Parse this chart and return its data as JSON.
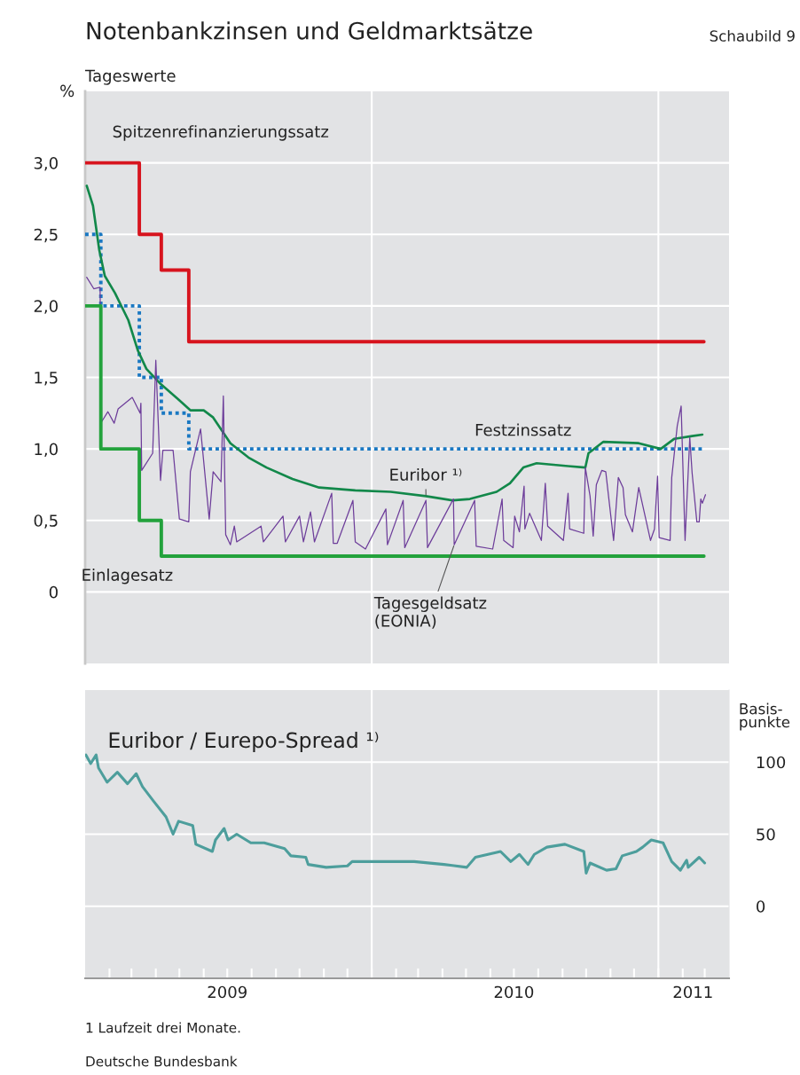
{
  "chart_data": [
    {
      "type": "line",
      "title": "Notenbankzinsen und Geldmarktsätze",
      "subtitle": "Tageswerte",
      "ylabel": "%",
      "annotations": [
        "Schaubild 9"
      ],
      "xlim": [
        "2009-01-01",
        "2011-04-01"
      ],
      "ylim": [
        -0.5,
        3.5
      ],
      "yticks": [
        0,
        {
          "value": 0.5,
          "label": "0,5"
        },
        {
          "value": 1.0,
          "label": "1,0"
        },
        {
          "value": 1.5,
          "label": "1,5"
        },
        {
          "value": 2.0,
          "label": "2,0"
        },
        {
          "value": 2.5,
          "label": "2,5"
        },
        {
          "value": 3.0,
          "label": "3,0"
        }
      ],
      "grid": "y",
      "tick_labels": "y",
      "ref_lines": [
        {
          "axis": "x",
          "value": "2010-01-01",
          "color": "#ffffff"
        },
        {
          "axis": "x",
          "value": "2011-01-01",
          "color": "#ffffff"
        }
      ],
      "series": [
        {
          "name": "Spitzenrefinanzierungssatz",
          "type": "step",
          "color": "#d7141e",
          "x": [
            "2009-01-01",
            "2009-03-11",
            "2009-04-08",
            "2009-05-13",
            "2011-02-28"
          ],
          "values": [
            3.0,
            2.5,
            2.25,
            1.75,
            1.75
          ]
        },
        {
          "name": "Festzinssatz",
          "type": "step",
          "line_style": "dotted",
          "color": "#1a78c2",
          "x": [
            "2009-01-01",
            "2009-01-21",
            "2009-03-11",
            "2009-04-08",
            "2009-05-13",
            "2011-02-28"
          ],
          "values": [
            2.5,
            2.0,
            1.5,
            1.25,
            1.0,
            1.0
          ]
        },
        {
          "name": "Euribor ¹⁾",
          "type": "line",
          "color": "#12884a",
          "x": [
            "2009-01-03",
            "2009-01-11",
            "2009-01-19",
            "2009-01-26",
            "2009-02-08",
            "2009-02-25",
            "2009-03-09",
            "2009-03-20",
            "2009-04-06",
            "2009-04-29",
            "2009-05-15",
            "2009-06-01",
            "2009-06-13",
            "2009-06-24",
            "2009-07-05",
            "2009-07-28",
            "2009-08-20",
            "2009-09-22",
            "2009-10-26",
            "2009-12-11",
            "2010-01-25",
            "2010-03-11",
            "2010-04-14",
            "2010-05-06",
            "2010-06-09",
            "2010-06-26",
            "2010-07-13",
            "2010-07-30",
            "2010-09-08",
            "2010-09-30",
            "2010-10-04",
            "2010-10-23",
            "2010-12-07",
            "2011-01-04",
            "2011-01-21",
            "2011-02-13",
            "2011-02-26"
          ],
          "values": [
            2.84,
            2.7,
            2.39,
            2.21,
            2.09,
            1.9,
            1.69,
            1.56,
            1.46,
            1.35,
            1.27,
            1.27,
            1.22,
            1.13,
            1.04,
            0.94,
            0.87,
            0.79,
            0.73,
            0.71,
            0.7,
            0.67,
            0.64,
            0.65,
            0.7,
            0.76,
            0.87,
            0.9,
            0.88,
            0.87,
            0.97,
            1.05,
            1.04,
            1.0,
            1.07,
            1.09,
            1.1
          ]
        },
        {
          "name": "Tagesgeldsatz\n(EONIA)",
          "type": "line",
          "color": "#6d3d9a",
          "x": [
            "2009-01-03",
            "2009-01-12",
            "2009-01-20",
            "2009-01-22",
            "2009-01-30",
            "2009-02-07",
            "2009-02-12",
            "2009-03-02",
            "2009-03-12",
            "2009-03-13",
            "2009-03-14",
            "2009-03-28",
            "2009-04-01",
            "2009-04-07",
            "2009-04-10",
            "2009-04-23",
            "2009-05-01",
            "2009-05-13",
            "2009-05-15",
            "2009-05-28",
            "2009-06-08",
            "2009-06-13",
            "2009-06-23",
            "2009-06-26",
            "2009-06-29",
            "2009-07-05",
            "2009-07-10",
            "2009-07-13",
            "2009-08-13",
            "2009-08-16",
            "2009-09-10",
            "2009-09-13",
            "2009-10-01",
            "2009-10-06",
            "2009-10-15",
            "2009-10-20",
            "2009-11-11",
            "2009-11-13",
            "2009-11-18",
            "2009-12-08",
            "2009-12-11",
            "2009-12-24",
            "2010-01-19",
            "2010-01-21",
            "2010-02-10",
            "2010-02-12",
            "2010-03-11",
            "2010-03-13",
            "2010-04-15",
            "2010-04-16",
            "2010-05-12",
            "2010-05-14",
            "2010-06-04",
            "2010-06-16",
            "2010-06-18",
            "2010-06-30",
            "2010-07-02",
            "2010-07-08",
            "2010-07-14",
            "2010-07-15",
            "2010-07-21",
            "2010-08-05",
            "2010-08-10",
            "2010-08-13",
            "2010-09-02",
            "2010-09-08",
            "2010-09-10",
            "2010-09-28",
            "2010-09-30",
            "2010-10-06",
            "2010-10-10",
            "2010-10-14",
            "2010-10-21",
            "2010-10-26",
            "2010-11-05",
            "2010-11-11",
            "2010-11-17",
            "2010-11-20",
            "2010-11-29",
            "2010-12-07",
            "2010-12-22",
            "2010-12-27",
            "2010-12-31",
            "2011-01-02",
            "2011-01-16",
            "2011-01-18",
            "2011-01-25",
            "2011-01-30",
            "2011-02-04",
            "2011-02-10",
            "2011-02-13",
            "2011-02-19",
            "2011-02-22",
            "2011-02-24",
            "2011-02-26",
            "2011-03-02"
          ],
          "values": [
            2.2,
            2.12,
            2.13,
            1.19,
            1.26,
            1.18,
            1.28,
            1.36,
            1.25,
            1.32,
            0.85,
            0.97,
            1.62,
            0.78,
            0.99,
            0.99,
            0.51,
            0.49,
            0.84,
            1.14,
            0.51,
            0.84,
            0.77,
            1.37,
            0.4,
            0.33,
            0.46,
            0.35,
            0.46,
            0.35,
            0.53,
            0.35,
            0.53,
            0.35,
            0.56,
            0.35,
            0.69,
            0.34,
            0.34,
            0.64,
            0.35,
            0.3,
            0.58,
            0.33,
            0.64,
            0.31,
            0.64,
            0.31,
            0.65,
            0.33,
            0.64,
            0.32,
            0.3,
            0.65,
            0.36,
            0.31,
            0.53,
            0.42,
            0.74,
            0.44,
            0.55,
            0.36,
            0.76,
            0.46,
            0.36,
            0.69,
            0.44,
            0.41,
            0.87,
            0.67,
            0.39,
            0.75,
            0.85,
            0.84,
            0.36,
            0.8,
            0.73,
            0.54,
            0.42,
            0.73,
            0.36,
            0.44,
            0.81,
            0.38,
            0.36,
            0.8,
            1.16,
            1.3,
            0.36,
            1.08,
            0.83,
            0.49,
            0.49,
            0.65,
            0.62,
            0.68
          ]
        },
        {
          "name": "Einlagesatz",
          "type": "step",
          "color": "#23a23c",
          "x": [
            "2009-01-01",
            "2009-01-21",
            "2009-03-11",
            "2009-04-08",
            "2011-02-28"
          ],
          "values": [
            2.0,
            1.0,
            0.5,
            0.25,
            0.25
          ]
        }
      ]
    },
    {
      "type": "line",
      "title": "Euribor / Eurepo-Spread ¹⁾",
      "ylabel": "Basis-\npunkte",
      "annotations": [
        "1 Laufzeit drei Monate.",
        "Deutsche Bundesbank"
      ],
      "xlim": [
        "2009-01-01",
        "2011-04-01"
      ],
      "ylim": [
        -50,
        150
      ],
      "yticks": [
        0,
        50,
        100
      ],
      "xticks": [
        {
          "value": "2009-02-01",
          "label": null
        },
        {
          "value": "2009-03-01",
          "label": null
        },
        {
          "value": "2009-04-01",
          "label": null
        },
        {
          "value": "2009-05-01",
          "label": null
        },
        {
          "value": "2009-06-01",
          "label": null
        },
        {
          "value": "2009-07-01",
          "label": null
        },
        {
          "value": "2009-08-01",
          "label": null
        },
        {
          "value": "2009-09-01",
          "label": null
        },
        {
          "value": "2009-10-01",
          "label": null
        },
        {
          "value": "2009-11-01",
          "label": null
        },
        {
          "value": "2009-12-01",
          "label": null
        },
        {
          "value": "2010-01-01",
          "label": null
        },
        {
          "value": "2010-02-01",
          "label": null
        },
        {
          "value": "2010-03-01",
          "label": null
        },
        {
          "value": "2010-04-01",
          "label": null
        },
        {
          "value": "2010-05-01",
          "label": null
        },
        {
          "value": "2010-06-01",
          "label": null
        },
        {
          "value": "2010-07-01",
          "label": null
        },
        {
          "value": "2010-08-01",
          "label": null
        },
        {
          "value": "2010-09-01",
          "label": null
        },
        {
          "value": "2010-10-01",
          "label": null
        },
        {
          "value": "2010-11-01",
          "label": null
        },
        {
          "value": "2010-12-01",
          "label": null
        },
        {
          "value": "2011-01-01",
          "label": null
        },
        {
          "value": "2011-02-01",
          "label": null
        },
        {
          "value": "2011-03-01",
          "label": null
        },
        {
          "value": "2009-07-01",
          "label": "2009"
        },
        {
          "value": "2010-07-01",
          "label": "2010"
        },
        {
          "value": "2011-02-14",
          "label": "2011"
        }
      ],
      "grid": "y",
      "ref_lines": [
        {
          "axis": "x",
          "value": "2010-01-01",
          "color": "#ffffff"
        },
        {
          "axis": "x",
          "value": "2011-01-01",
          "color": "#ffffff"
        }
      ],
      "series": [
        {
          "color": "#4d9e9c",
          "x": [
            "2009-01-02",
            "2009-01-08",
            "2009-01-15",
            "2009-01-18",
            "2009-01-29",
            "2009-02-11",
            "2009-02-24",
            "2009-03-07",
            "2009-03-15",
            "2009-03-29",
            "2009-04-14",
            "2009-04-23",
            "2009-04-30",
            "2009-05-18",
            "2009-05-22",
            "2009-06-12",
            "2009-06-16",
            "2009-06-27",
            "2009-07-02",
            "2009-07-13",
            "2009-07-31",
            "2009-08-17",
            "2009-09-12",
            "2009-09-20",
            "2009-10-09",
            "2009-10-12",
            "2009-11-04",
            "2009-12-01",
            "2009-12-07",
            "2010-01-08",
            "2010-02-24",
            "2010-04-03",
            "2010-05-02",
            "2010-05-13",
            "2010-06-14",
            "2010-06-27",
            "2010-07-08",
            "2010-07-19",
            "2010-07-27",
            "2010-08-12",
            "2010-09-04",
            "2010-09-28",
            "2010-10-01",
            "2010-10-06",
            "2010-10-27",
            "2010-11-08",
            "2010-11-16",
            "2010-12-04",
            "2010-12-12",
            "2010-12-23",
            "2011-01-07",
            "2011-01-18",
            "2011-01-29",
            "2011-02-06",
            "2011-02-08",
            "2011-02-22",
            "2011-03-01"
          ],
          "values": [
            105,
            99,
            105,
            96,
            86,
            93,
            85,
            92,
            83,
            73,
            62,
            50,
            59,
            56,
            43,
            38,
            46,
            54,
            46,
            50,
            44,
            44,
            40,
            35,
            34,
            29,
            27,
            28,
            31,
            31,
            31,
            29,
            27,
            34,
            38,
            31,
            36,
            29,
            36,
            41,
            43,
            38,
            23,
            30,
            25,
            26,
            35,
            38,
            41,
            46,
            44,
            31,
            25,
            32,
            27,
            34,
            30
          ]
        }
      ]
    }
  ]
}
